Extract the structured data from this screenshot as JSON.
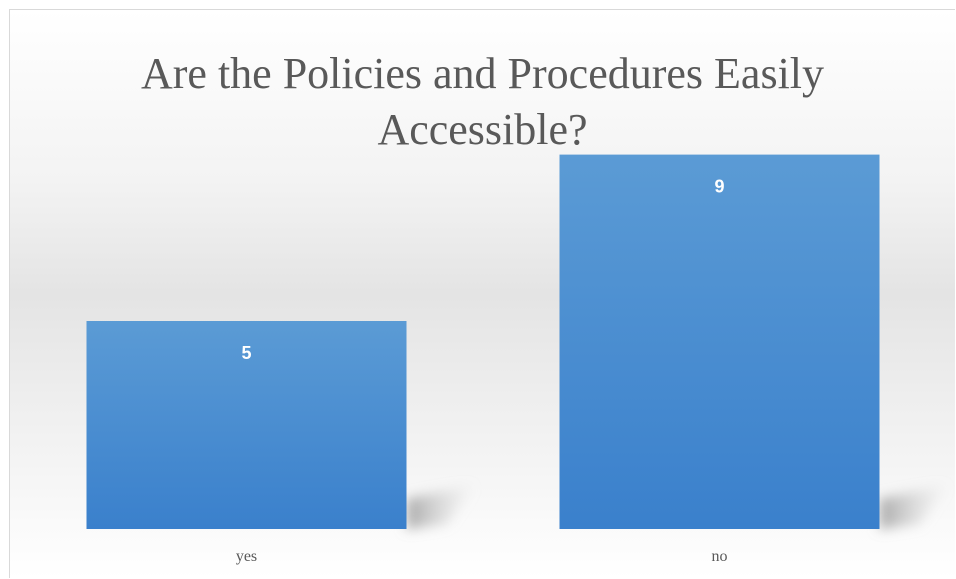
{
  "chart_data": {
    "type": "bar",
    "title": "Are the Policies and Procedures Easily Accessible?",
    "title_lines": [
      "Are the Policies and Procedures Easily",
      "Accessible?"
    ],
    "categories": [
      "yes",
      "no"
    ],
    "values": [
      5,
      9
    ],
    "xlabel": "",
    "ylabel": "",
    "ylim": [
      0,
      10
    ],
    "grid": false,
    "legend": "none",
    "bar_color": "#4a8fd6",
    "bar_color_light": "#5b9bd5",
    "bar_color_dark": "#3a80cc"
  }
}
